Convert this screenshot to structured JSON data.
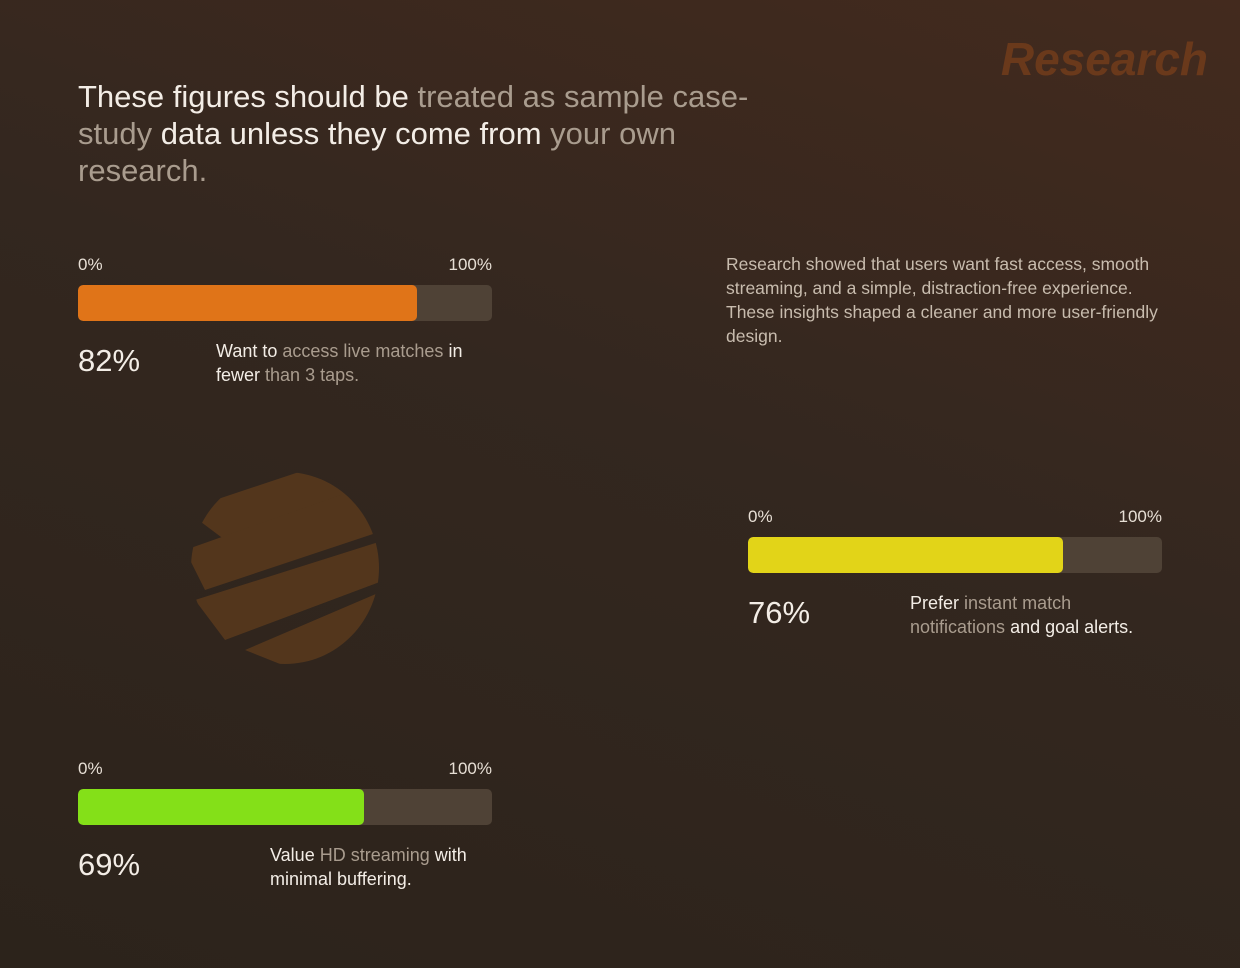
{
  "brand": "Research",
  "headline": [
    {
      "text": "These figures should be",
      "muted": false
    },
    {
      "text": "treated as sample case-study",
      "muted": true
    },
    {
      "text": "data unless they come from",
      "muted": false
    },
    {
      "text": "your own research.",
      "muted": true
    }
  ],
  "intro": "Research showed that users want fast access, smooth streaming, and a simple, distraction-free experience. These insights shaped a cleaner and more user-friendly design.",
  "stats": [
    {
      "value": 82,
      "value_label": "82%",
      "color": "#e07418",
      "ticks": [
        {
          "value": 0,
          "label": "0%"
        },
        {
          "value": 100,
          "label": "100%"
        }
      ],
      "caption": [
        {
          "text": "Want to",
          "muted": false
        },
        {
          "text": "access live matches",
          "muted": true
        },
        {
          "text": "in fewer",
          "muted": false
        },
        {
          "text": "than 3 taps.",
          "muted": true
        }
      ]
    },
    {
      "value": 76,
      "value_label": "76%",
      "color": "#e2d418",
      "ticks": [
        {
          "value": 0,
          "label": "0%"
        },
        {
          "value": 100,
          "label": "100%"
        }
      ],
      "caption": [
        {
          "text": "Prefer",
          "muted": false
        },
        {
          "text": "instant match notifications",
          "muted": true
        },
        {
          "text": "and goal alerts.",
          "muted": false
        }
      ]
    },
    {
      "value": 69,
      "value_label": "69%",
      "color": "#84e018",
      "ticks": [
        {
          "value": 0,
          "label": "0%"
        },
        {
          "value": 100,
          "label": "100%"
        }
      ],
      "caption": [
        {
          "text": "Value",
          "muted": false
        },
        {
          "text": "HD streaming",
          "muted": true
        },
        {
          "text": "with minimal buffering.",
          "muted": false
        }
      ]
    }
  ]
}
